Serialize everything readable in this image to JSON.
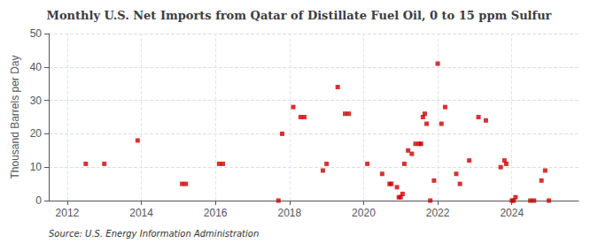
{
  "chart_data": {
    "type": "scatter",
    "title": "Monthly U.S. Net Imports from Qatar of Distillate Fuel Oil, 0 to 15 ppm Sulfur",
    "ylabel": "Thousand Barrels per Day",
    "annotation": "Source: U.S. Energy Information Administration",
    "x": [
      2012.5,
      2013.0,
      2013.9,
      2015.1,
      2015.2,
      2016.1,
      2016.2,
      2017.7,
      2017.8,
      2018.1,
      2018.3,
      2018.4,
      2018.9,
      2019.0,
      2019.3,
      2019.5,
      2019.6,
      2020.1,
      2020.5,
      2020.7,
      2020.75,
      2020.9,
      2020.95,
      2021.0,
      2021.05,
      2021.1,
      2021.2,
      2021.3,
      2021.4,
      2021.5,
      2021.55,
      2021.6,
      2021.65,
      2021.7,
      2021.8,
      2021.9,
      2022.0,
      2022.1,
      2022.2,
      2022.5,
      2022.6,
      2022.85,
      2023.1,
      2023.3,
      2023.7,
      2023.8,
      2023.85,
      2024.0,
      2024.05,
      2024.1,
      2024.5,
      2024.6,
      2024.8,
      2024.9,
      2025.0
    ],
    "values": [
      11,
      11,
      18,
      5,
      5,
      11,
      11,
      0,
      20,
      28,
      25,
      25,
      9,
      11,
      34,
      26,
      26,
      11,
      8,
      5,
      5,
      4,
      1,
      1,
      2,
      11,
      15,
      14,
      17,
      17,
      17,
      25,
      26,
      23,
      0,
      6,
      41,
      23,
      28,
      8,
      5,
      12,
      25,
      24,
      10,
      12,
      11,
      0,
      0,
      1,
      0,
      0,
      6,
      9,
      0
    ],
    "color": "#cc0000",
    "marker": "square",
    "xlim": [
      2011.5,
      2025.8
    ],
    "ylim": [
      0,
      50
    ],
    "xticks": [
      2012,
      2014,
      2016,
      2018,
      2020,
      2022,
      2024
    ],
    "yticks": [
      0,
      10,
      20,
      30,
      40,
      50
    ],
    "grid": true
  }
}
